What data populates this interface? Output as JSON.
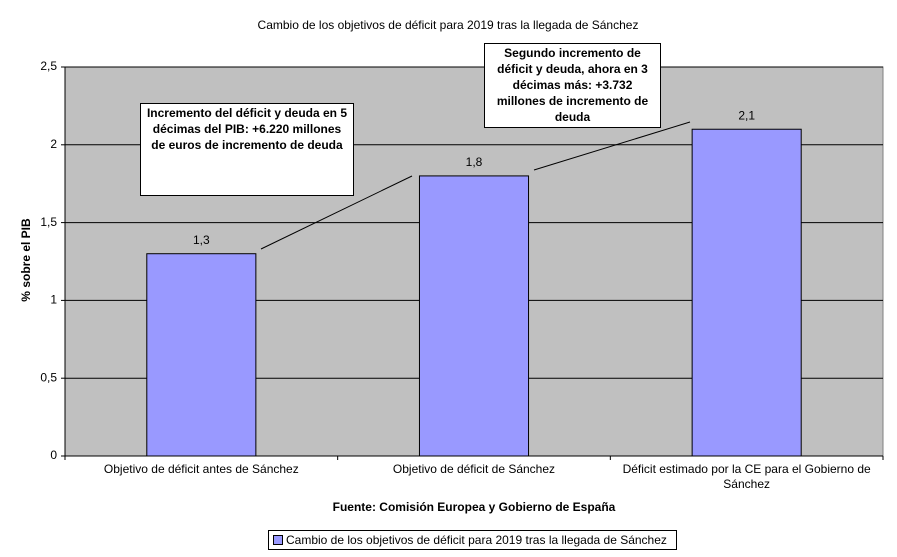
{
  "chart_data": {
    "type": "bar",
    "title": "Cambio de los objetivos de déficit para 2019 tras la llegada de Sánchez",
    "y_label": "% sobre el PIB",
    "x_label": "Fuente: Comisión Europea y Gobierno de España",
    "categories": [
      "Objetivo de déficit antes de Sánchez",
      "Objetivo de déficit de Sánchez",
      "Déficit estimado por la CE para el Gobierno de Sánchez"
    ],
    "series": [
      {
        "name": "Cambio de los objetivos de déficit para 2019 tras la llegada de Sánchez",
        "color": "#9999ff",
        "values": [
          1.3,
          1.8,
          2.1
        ],
        "value_labels": [
          "1,3",
          "1,8",
          "2,1"
        ]
      }
    ],
    "ylim": [
      0,
      2.5
    ],
    "yticks": [
      0,
      {
        "value": 0.5,
        "label": "0,5"
      },
      1,
      {
        "value": 1.5,
        "label": "1,5"
      },
      2,
      {
        "value": 2.5,
        "label": "2,5"
      }
    ],
    "grid": true,
    "legend": "bottom",
    "annotations": [
      "Incremento del déficit y deuda en 5 décimas del PIB: +6.220 millones de euros de incremento de deuda",
      "Segundo incremento de déficit y deuda, ahora en 3 décimas más: +3.732 millones de incremento de deuda"
    ]
  }
}
